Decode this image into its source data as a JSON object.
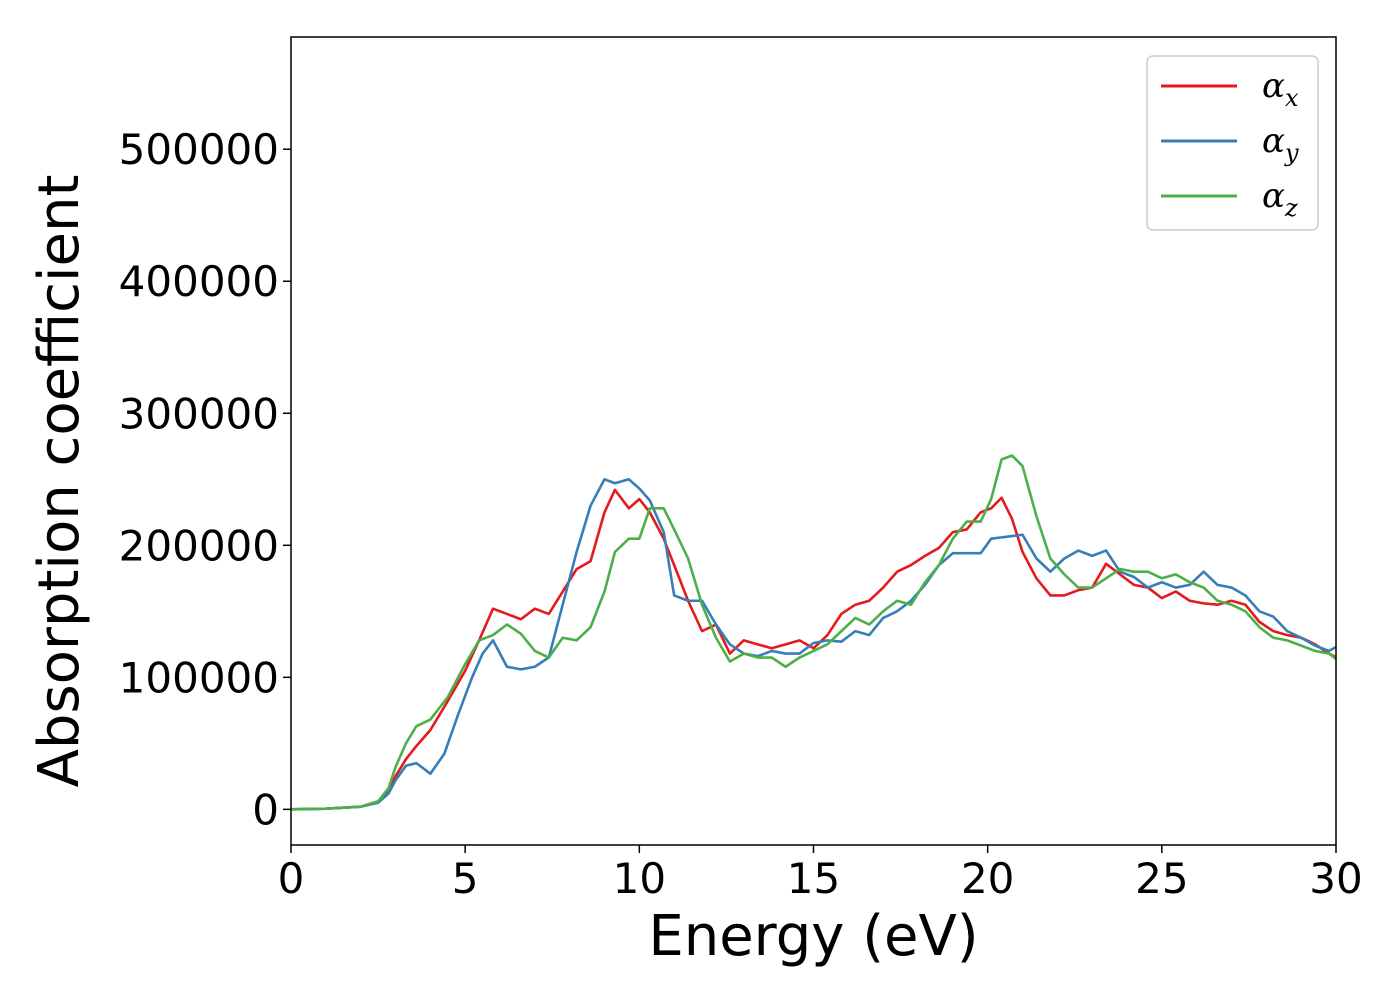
{
  "chart_data": {
    "type": "line",
    "title": "",
    "xlabel": "Energy (eV)",
    "ylabel": "Absorption coefficient",
    "xlim": [
      0,
      30
    ],
    "ylim": [
      -27000,
      585000
    ],
    "x_ticks": [
      0,
      5,
      10,
      15,
      20,
      25,
      30
    ],
    "x_tick_labels": [
      "0",
      "5",
      "10",
      "15",
      "20",
      "25",
      "30"
    ],
    "y_ticks": [
      0,
      100000,
      200000,
      300000,
      400000,
      500000
    ],
    "y_tick_labels": [
      "0",
      "100000",
      "200000",
      "300000",
      "400000",
      "500000"
    ],
    "grid": false,
    "legend_position": "top-right",
    "series": [
      {
        "name": "α",
        "subscript": "x",
        "color": "#e41a1c",
        "x": [
          0,
          1,
          2,
          2.5,
          2.8,
          3.0,
          3.3,
          3.6,
          4.0,
          4.5,
          5.0,
          5.4,
          5.8,
          6.2,
          6.6,
          7.0,
          7.4,
          7.8,
          8.2,
          8.6,
          9.0,
          9.3,
          9.7,
          10.0,
          10.3,
          10.7,
          11.0,
          11.4,
          11.8,
          12.2,
          12.6,
          13.0,
          13.4,
          13.8,
          14.2,
          14.6,
          15.0,
          15.4,
          15.8,
          16.2,
          16.6,
          17.0,
          17.4,
          17.8,
          18.2,
          18.6,
          19.0,
          19.4,
          19.8,
          20.1,
          20.4,
          20.7,
          21.0,
          21.4,
          21.8,
          22.2,
          22.6,
          23.0,
          23.4,
          23.8,
          24.2,
          24.6,
          25.0,
          25.4,
          25.8,
          26.2,
          26.6,
          27.0,
          27.4,
          27.8,
          28.2,
          28.6,
          29.0,
          29.4,
          29.8,
          30.0
        ],
        "y": [
          0,
          500,
          2000,
          6000,
          14000,
          25000,
          38000,
          48000,
          60000,
          82000,
          105000,
          128000,
          152000,
          148000,
          144000,
          152000,
          148000,
          165000,
          182000,
          188000,
          225000,
          242000,
          228000,
          235000,
          225000,
          205000,
          185000,
          158000,
          135000,
          140000,
          118000,
          128000,
          125000,
          122000,
          125000,
          128000,
          122000,
          132000,
          148000,
          155000,
          158000,
          168000,
          180000,
          185000,
          192000,
          198000,
          210000,
          212000,
          225000,
          228000,
          236000,
          220000,
          195000,
          175000,
          162000,
          162000,
          166000,
          168000,
          186000,
          178000,
          170000,
          168000,
          160000,
          165000,
          158000,
          156000,
          155000,
          158000,
          155000,
          142000,
          135000,
          132000,
          130000,
          125000,
          118000,
          115000
        ]
      },
      {
        "name": "α",
        "subscript": "y",
        "color": "#377eb8",
        "x": [
          0,
          1,
          2,
          2.5,
          2.8,
          3.0,
          3.3,
          3.6,
          4.0,
          4.4,
          4.8,
          5.2,
          5.5,
          5.8,
          6.2,
          6.6,
          7.0,
          7.4,
          7.8,
          8.2,
          8.6,
          9.0,
          9.3,
          9.7,
          10.0,
          10.3,
          10.7,
          11.0,
          11.4,
          11.8,
          12.2,
          12.6,
          13.0,
          13.4,
          13.8,
          14.2,
          14.6,
          15.0,
          15.4,
          15.8,
          16.2,
          16.6,
          17.0,
          17.4,
          17.8,
          18.2,
          18.6,
          19.0,
          19.4,
          19.8,
          20.1,
          20.4,
          20.7,
          21.0,
          21.4,
          21.8,
          22.2,
          22.6,
          23.0,
          23.4,
          23.8,
          24.2,
          24.6,
          25.0,
          25.4,
          25.8,
          26.2,
          26.6,
          27.0,
          27.4,
          27.8,
          28.2,
          28.6,
          29.0,
          29.4,
          29.8,
          30.0
        ],
        "y": [
          0,
          500,
          2000,
          5000,
          12000,
          22000,
          33000,
          35000,
          27000,
          42000,
          72000,
          100000,
          118000,
          128000,
          108000,
          106000,
          108000,
          115000,
          155000,
          195000,
          230000,
          250000,
          247000,
          250000,
          243000,
          234000,
          210000,
          162000,
          158000,
          158000,
          140000,
          125000,
          118000,
          116000,
          120000,
          118000,
          118000,
          126000,
          128000,
          127000,
          135000,
          132000,
          145000,
          150000,
          158000,
          170000,
          185000,
          194000,
          194000,
          194000,
          205000,
          206000,
          207000,
          208000,
          190000,
          180000,
          190000,
          196000,
          192000,
          196000,
          180000,
          176000,
          168000,
          172000,
          168000,
          170000,
          180000,
          170000,
          168000,
          162000,
          150000,
          146000,
          135000,
          130000,
          124000,
          120000,
          123000
        ]
      },
      {
        "name": "α",
        "subscript": "z",
        "color": "#4daf4a",
        "x": [
          0,
          1,
          2,
          2.5,
          2.8,
          3.0,
          3.3,
          3.6,
          4.0,
          4.5,
          5.0,
          5.4,
          5.8,
          6.2,
          6.6,
          7.0,
          7.4,
          7.8,
          8.2,
          8.6,
          9.0,
          9.3,
          9.7,
          10.0,
          10.3,
          10.7,
          11.0,
          11.4,
          11.8,
          12.2,
          12.6,
          13.0,
          13.4,
          13.8,
          14.2,
          14.6,
          15.0,
          15.4,
          15.8,
          16.2,
          16.6,
          17.0,
          17.4,
          17.8,
          18.2,
          18.6,
          19.0,
          19.4,
          19.8,
          20.1,
          20.4,
          20.7,
          21.0,
          21.4,
          21.8,
          22.2,
          22.6,
          23.0,
          23.4,
          23.8,
          24.2,
          24.6,
          25.0,
          25.4,
          25.8,
          26.2,
          26.6,
          27.0,
          27.4,
          27.8,
          28.2,
          28.6,
          29.0,
          29.4,
          29.8,
          30.0
        ],
        "y": [
          0,
          500,
          2000,
          6000,
          16000,
          32000,
          50000,
          63000,
          68000,
          85000,
          110000,
          128000,
          132000,
          140000,
          133000,
          120000,
          115000,
          130000,
          128000,
          138000,
          165000,
          195000,
          205000,
          205000,
          228000,
          228000,
          212000,
          190000,
          155000,
          130000,
          112000,
          118000,
          115000,
          115000,
          108000,
          115000,
          120000,
          125000,
          135000,
          145000,
          140000,
          150000,
          158000,
          155000,
          172000,
          185000,
          205000,
          218000,
          218000,
          235000,
          265000,
          268000,
          260000,
          222000,
          190000,
          178000,
          168000,
          168000,
          175000,
          182000,
          180000,
          180000,
          175000,
          178000,
          172000,
          168000,
          158000,
          155000,
          150000,
          138000,
          130000,
          128000,
          124000,
          120000,
          118000,
          114000
        ]
      }
    ]
  }
}
